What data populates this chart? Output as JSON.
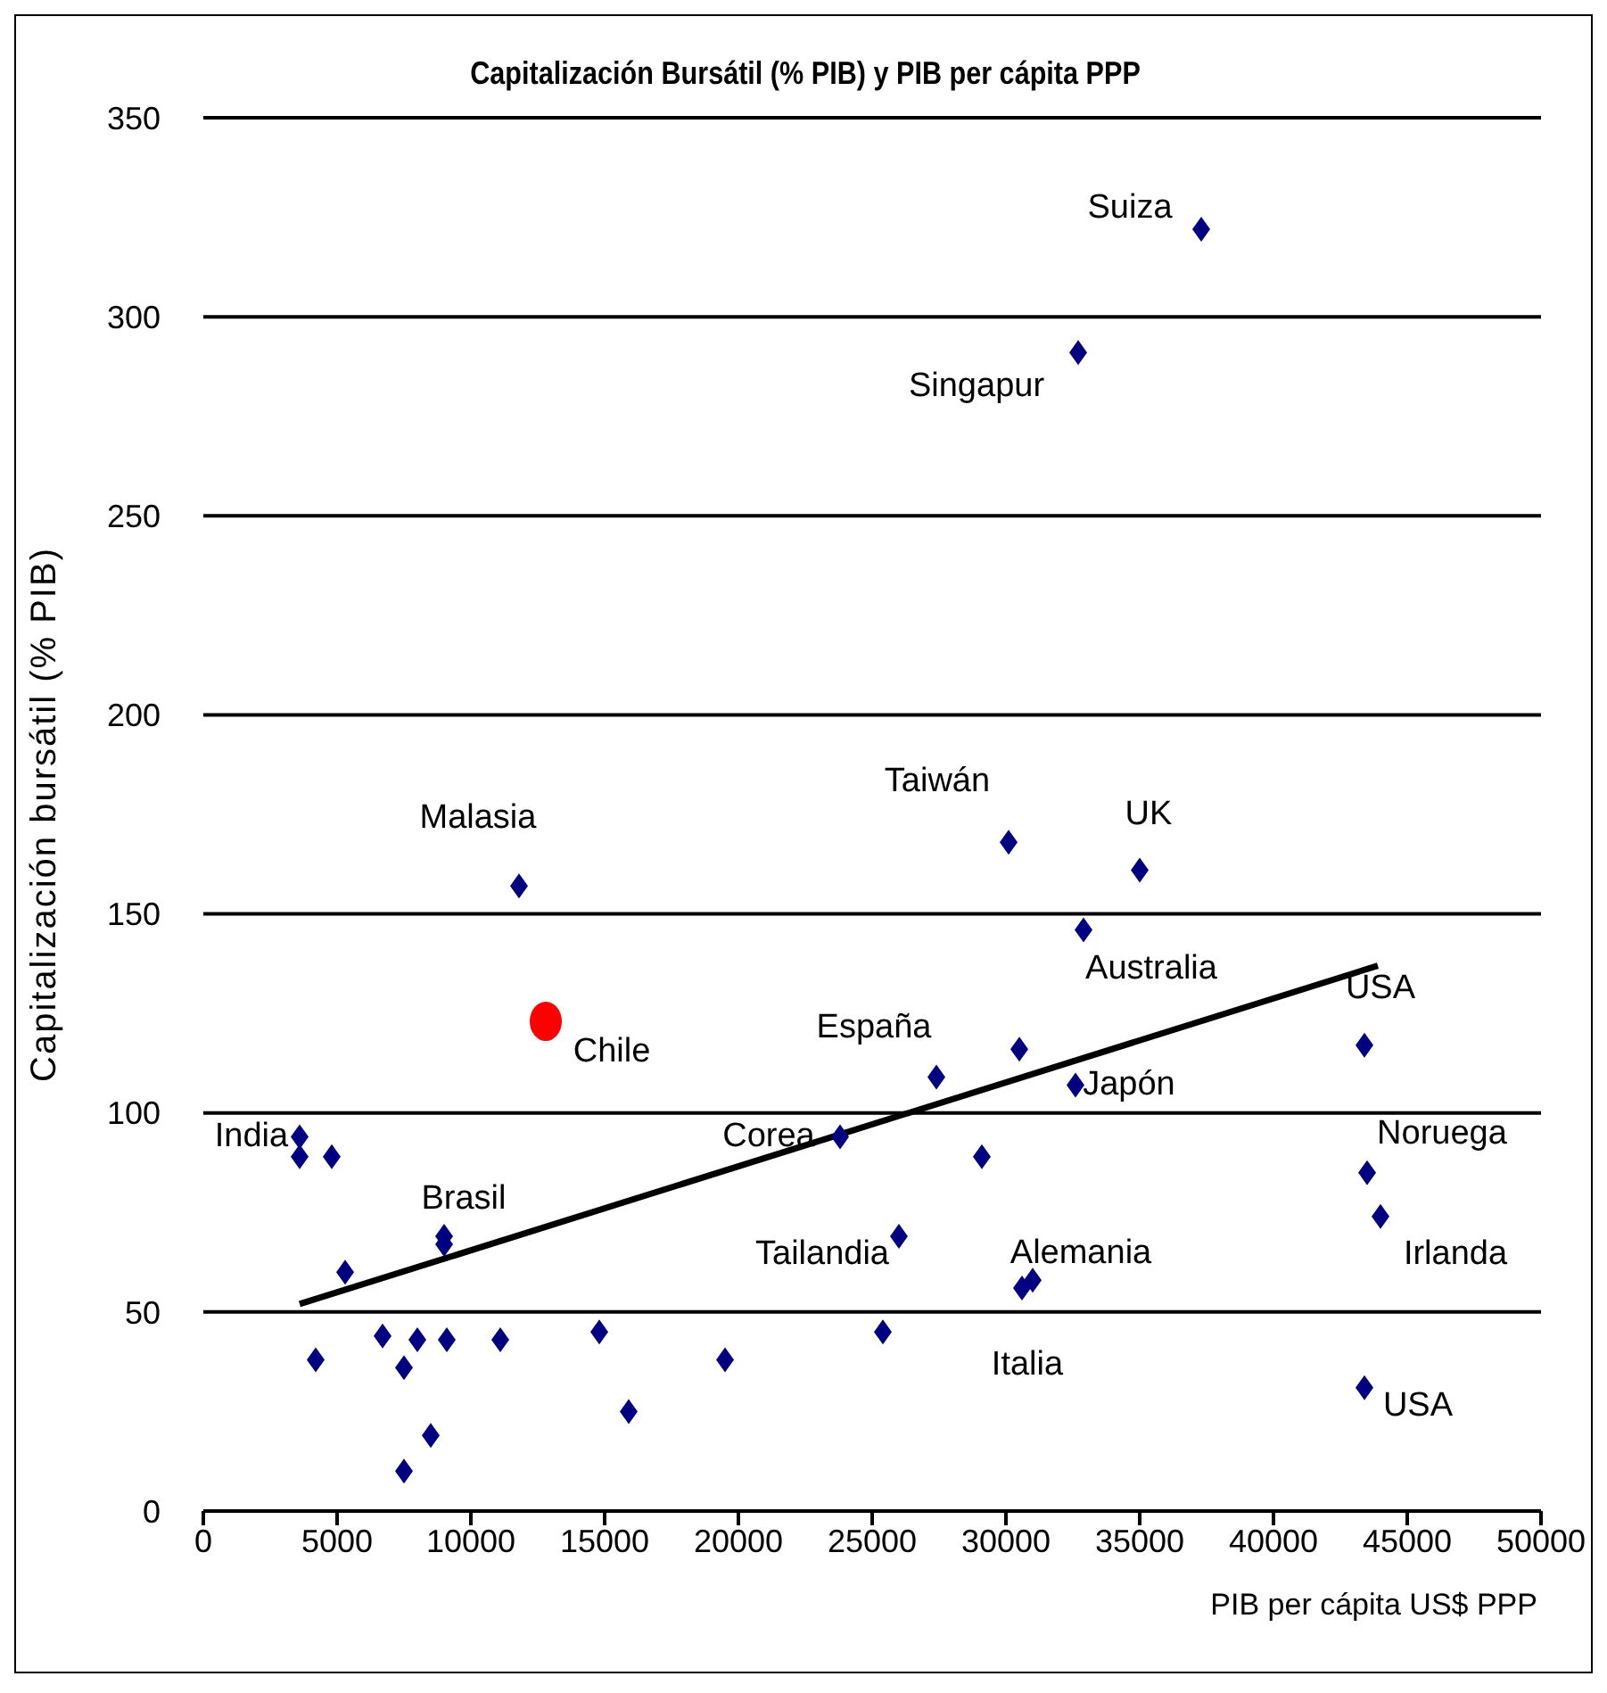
{
  "chart_data": {
    "type": "scatter",
    "title": "Capitalización Bursátil (% PIB) y PIB per cápita PPP",
    "xlabel": "PIB per cápita US$ PPP",
    "ylabel": "Capitalización bursátil (% PIB)",
    "xlim": [
      0,
      50000
    ],
    "xticks": [
      0,
      5000,
      10000,
      15000,
      20000,
      25000,
      30000,
      35000,
      40000,
      45000,
      50000
    ],
    "ylim": [
      0,
      350
    ],
    "yticks": [
      0,
      50,
      100,
      150,
      200,
      250,
      300,
      350
    ],
    "grid": "y",
    "legend": false,
    "series": [
      {
        "color": "#000080",
        "marker": "diamond",
        "x": [
          37300,
          32700,
          11800,
          30100,
          35000,
          32900,
          27400,
          30500,
          32600,
          23800,
          29100,
          43400,
          43500,
          44000,
          26000,
          31000,
          30600,
          25400,
          19500,
          43400,
          3600,
          3600,
          4800,
          9000,
          9000,
          5300,
          4200,
          6700,
          9100,
          8000,
          11100,
          14800,
          7500,
          8500,
          7500,
          15900
        ],
        "values": [
          322,
          291,
          157,
          168,
          161,
          146,
          109,
          116,
          107,
          94,
          89,
          117,
          85,
          74,
          69,
          58,
          56,
          45,
          38,
          31,
          94,
          89,
          89,
          69,
          67,
          60,
          38,
          44,
          43,
          43,
          43,
          45,
          36,
          19,
          10,
          25
        ]
      },
      {
        "color": "#ff0000",
        "marker": "circle",
        "x": [
          12800
        ],
        "values": [
          123
        ]
      },
      {
        "type": "line",
        "color": "#000000",
        "marker": "none",
        "line_style": "solid",
        "x": [
          3600,
          43900
        ],
        "values": [
          52,
          137
        ]
      }
    ],
    "annotations": [
      {
        "text": "Suiza",
        "x": 37300,
        "y": 322
      },
      {
        "text": "Singapur",
        "x": 32700,
        "y": 291
      },
      {
        "text": "Malasia",
        "x": 11800,
        "y": 157
      },
      {
        "text": "Chile",
        "x": 12800,
        "y": 123
      },
      {
        "text": "Taiwán",
        "x": 30100,
        "y": 168
      },
      {
        "text": "UK",
        "x": 35000,
        "y": 161
      },
      {
        "text": "Australia",
        "x": 32900,
        "y": 146
      },
      {
        "text": "España",
        "x": 27400,
        "y": 109
      },
      {
        "text": "Japón",
        "x": 32600,
        "y": 107
      },
      {
        "text": "Corea",
        "x": 23800,
        "y": 94
      },
      {
        "text": "USA",
        "x": 43400,
        "y": 117
      },
      {
        "text": "Noruega",
        "x": 43500,
        "y": 85
      },
      {
        "text": "Irlanda",
        "x": 44000,
        "y": 74
      },
      {
        "text": "Tailandia",
        "x": 26000,
        "y": 69
      },
      {
        "text": "Alemania",
        "x": 31000,
        "y": 58
      },
      {
        "text": "Italia",
        "x": 30600,
        "y": 56
      },
      {
        "text": "USA",
        "x": 43400,
        "y": 31
      },
      {
        "text": "India",
        "x": 3600,
        "y": 94
      },
      {
        "text": "Brasil",
        "x": 9000,
        "y": 69
      }
    ]
  }
}
